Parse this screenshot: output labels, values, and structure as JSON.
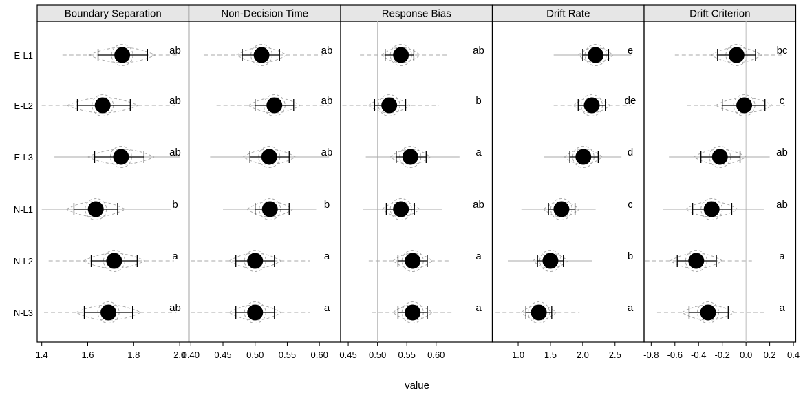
{
  "chart_data": {
    "type": "scatter",
    "xlabel": "value",
    "rows": [
      "E-L1",
      "E-L2",
      "E-L3",
      "N-L1",
      "N-L2",
      "N-L3"
    ],
    "colors": {
      "point": "#000000",
      "ci": "#000000",
      "band": "#aaaaaa",
      "strip_bg": "#e6e6e6",
      "refline": "#bbbbbb"
    },
    "panels": [
      {
        "title": "Boundary Separation",
        "xlim": [
          1.38,
          2.04
        ],
        "ticks": [
          1.4,
          1.6,
          1.8,
          2.0
        ],
        "tick_labels": [
          "1.4",
          "1.6",
          "1.8",
          "2.0"
        ],
        "refline": null,
        "points": [
          {
            "row": "E-L1",
            "mean": 1.75,
            "lo": 1.645,
            "hi": 1.86,
            "range_lo": 1.49,
            "range_hi": 2.0,
            "letter": "ab",
            "band": "dashed"
          },
          {
            "row": "E-L2",
            "mean": 1.665,
            "lo": 1.555,
            "hi": 1.785,
            "range_lo": 1.4,
            "range_hi": 1.98,
            "letter": "ab",
            "band": "dashed"
          },
          {
            "row": "E-L3",
            "mean": 1.745,
            "lo": 1.63,
            "hi": 1.845,
            "range_lo": 1.455,
            "range_hi": 2.0,
            "letter": "ab",
            "band": "solid"
          },
          {
            "row": "N-L1",
            "mean": 1.635,
            "lo": 1.54,
            "hi": 1.73,
            "range_lo": 1.4,
            "range_hi": 1.96,
            "letter": "b",
            "band": "solid"
          },
          {
            "row": "N-L2",
            "mean": 1.715,
            "lo": 1.615,
            "hi": 1.815,
            "range_lo": 1.43,
            "range_hi": 1.975,
            "letter": "a",
            "band": "dashed"
          },
          {
            "row": "N-L3",
            "mean": 1.69,
            "lo": 1.585,
            "hi": 1.795,
            "range_lo": 1.41,
            "range_hi": 1.985,
            "letter": "ab",
            "band": "dashed"
          }
        ]
      },
      {
        "title": "Non-Decision Time",
        "xlim": [
          0.397,
          0.633
        ],
        "ticks": [
          0.4,
          0.45,
          0.5,
          0.55,
          0.6
        ],
        "tick_labels": [
          "0.40",
          "0.45",
          "0.50",
          "0.55",
          "0.60"
        ],
        "refline": null,
        "points": [
          {
            "row": "E-L1",
            "mean": 0.51,
            "lo": 0.48,
            "hi": 0.538,
            "range_lo": 0.42,
            "range_hi": 0.605,
            "letter": "ab",
            "band": "dashed"
          },
          {
            "row": "E-L2",
            "mean": 0.53,
            "lo": 0.5,
            "hi": 0.56,
            "range_lo": 0.44,
            "range_hi": 0.615,
            "letter": "ab",
            "band": "dashed"
          },
          {
            "row": "E-L3",
            "mean": 0.522,
            "lo": 0.492,
            "hi": 0.553,
            "range_lo": 0.43,
            "range_hi": 0.615,
            "letter": "ab",
            "band": "solid"
          },
          {
            "row": "N-L1",
            "mean": 0.523,
            "lo": 0.5,
            "hi": 0.553,
            "range_lo": 0.45,
            "range_hi": 0.595,
            "letter": "b",
            "band": "solid"
          },
          {
            "row": "N-L2",
            "mean": 0.5,
            "lo": 0.47,
            "hi": 0.53,
            "range_lo": 0.4,
            "range_hi": 0.585,
            "letter": "a",
            "band": "dashed"
          },
          {
            "row": "N-L3",
            "mean": 0.5,
            "lo": 0.47,
            "hi": 0.53,
            "range_lo": 0.4,
            "range_hi": 0.585,
            "letter": "a",
            "band": "dashed"
          }
        ]
      },
      {
        "title": "Response Bias",
        "xlim": [
          0.437,
          0.696
        ],
        "ticks": [
          0.45,
          0.5,
          0.55,
          0.6
        ],
        "tick_labels": [
          "0.45",
          "0.50",
          "0.55",
          "0.60"
        ],
        "refline": 0.5,
        "points": [
          {
            "row": "E-L1",
            "mean": 0.54,
            "lo": 0.513,
            "hi": 0.562,
            "range_lo": 0.47,
            "range_hi": 0.62,
            "letter": "ab",
            "band": "dashed"
          },
          {
            "row": "E-L2",
            "mean": 0.52,
            "lo": 0.495,
            "hi": 0.548,
            "range_lo": 0.44,
            "range_hi": 0.605,
            "letter": "b",
            "band": "dashed"
          },
          {
            "row": "E-L3",
            "mean": 0.556,
            "lo": 0.532,
            "hi": 0.583,
            "range_lo": 0.48,
            "range_hi": 0.64,
            "letter": "a",
            "band": "solid"
          },
          {
            "row": "N-L1",
            "mean": 0.54,
            "lo": 0.515,
            "hi": 0.563,
            "range_lo": 0.475,
            "range_hi": 0.61,
            "letter": "ab",
            "band": "solid"
          },
          {
            "row": "N-L2",
            "mean": 0.56,
            "lo": 0.535,
            "hi": 0.585,
            "range_lo": 0.485,
            "range_hi": 0.625,
            "letter": "a",
            "band": "dashed"
          },
          {
            "row": "N-L3",
            "mean": 0.56,
            "lo": 0.535,
            "hi": 0.585,
            "range_lo": 0.49,
            "range_hi": 0.63,
            "letter": "a",
            "band": "dashed"
          }
        ]
      },
      {
        "title": "Drift Rate",
        "xlim": [
          0.6,
          2.95
        ],
        "ticks": [
          1.0,
          1.5,
          2.0,
          2.5
        ],
        "tick_labels": [
          "1.0",
          "1.5",
          "2.0",
          "2.5"
        ],
        "refline": null,
        "points": [
          {
            "row": "E-L1",
            "mean": 2.2,
            "lo": 2.0,
            "hi": 2.4,
            "range_lo": 1.55,
            "range_hi": 2.75,
            "letter": "e",
            "band": "solid"
          },
          {
            "row": "E-L2",
            "mean": 2.14,
            "lo": 1.93,
            "hi": 2.35,
            "range_lo": 1.55,
            "range_hi": 2.75,
            "letter": "de",
            "band": "dashed"
          },
          {
            "row": "E-L3",
            "mean": 2.01,
            "lo": 1.8,
            "hi": 2.24,
            "range_lo": 1.4,
            "range_hi": 2.6,
            "letter": "d",
            "band": "solid"
          },
          {
            "row": "N-L1",
            "mean": 1.67,
            "lo": 1.47,
            "hi": 1.88,
            "range_lo": 1.05,
            "range_hi": 2.2,
            "letter": "c",
            "band": "solid"
          },
          {
            "row": "N-L2",
            "mean": 1.5,
            "lo": 1.3,
            "hi": 1.7,
            "range_lo": 0.85,
            "range_hi": 2.15,
            "letter": "b",
            "band": "solid"
          },
          {
            "row": "N-L3",
            "mean": 1.32,
            "lo": 1.12,
            "hi": 1.52,
            "range_lo": 0.65,
            "range_hi": 1.95,
            "letter": "a",
            "band": "dashed"
          }
        ]
      },
      {
        "title": "Drift Criterion",
        "xlim": [
          -0.86,
          0.42
        ],
        "ticks": [
          -0.8,
          -0.6,
          -0.4,
          -0.2,
          0.0,
          0.2,
          0.4
        ],
        "tick_labels": [
          "-0.8",
          "-0.6",
          "-0.4",
          "-0.2",
          "0.0",
          "0.2",
          "0.4"
        ],
        "refline": 0.0,
        "points": [
          {
            "row": "E-L1",
            "mean": -0.08,
            "lo": -0.24,
            "hi": 0.08,
            "range_lo": -0.6,
            "range_hi": 0.3,
            "letter": "bc",
            "band": "dashed"
          },
          {
            "row": "E-L2",
            "mean": -0.015,
            "lo": -0.2,
            "hi": 0.16,
            "range_lo": -0.5,
            "range_hi": 0.33,
            "letter": "c",
            "band": "dashed"
          },
          {
            "row": "E-L3",
            "mean": -0.22,
            "lo": -0.38,
            "hi": -0.05,
            "range_lo": -0.65,
            "range_hi": 0.2,
            "letter": "ab",
            "band": "solid"
          },
          {
            "row": "N-L1",
            "mean": -0.29,
            "lo": -0.45,
            "hi": -0.12,
            "range_lo": -0.7,
            "range_hi": 0.15,
            "letter": "ab",
            "band": "solid"
          },
          {
            "row": "N-L2",
            "mean": -0.42,
            "lo": -0.58,
            "hi": -0.25,
            "range_lo": -0.85,
            "range_hi": 0.05,
            "letter": "a",
            "band": "dashed"
          },
          {
            "row": "N-L3",
            "mean": -0.32,
            "lo": -0.48,
            "hi": -0.15,
            "range_lo": -0.75,
            "range_hi": 0.15,
            "letter": "a",
            "band": "dashed"
          }
        ]
      }
    ]
  }
}
